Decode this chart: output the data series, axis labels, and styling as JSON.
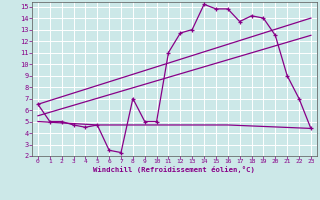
{
  "xlabel": "Windchill (Refroidissement éolien,°C)",
  "bg_color": "#cce8e8",
  "grid_color": "#ffffff",
  "line_color": "#880088",
  "xlim": [
    -0.5,
    23.5
  ],
  "ylim": [
    2,
    15.4
  ],
  "xticks": [
    0,
    1,
    2,
    3,
    4,
    5,
    6,
    7,
    8,
    9,
    10,
    11,
    12,
    13,
    14,
    15,
    16,
    17,
    18,
    19,
    20,
    21,
    22,
    23
  ],
  "yticks": [
    2,
    3,
    4,
    5,
    6,
    7,
    8,
    9,
    10,
    11,
    12,
    13,
    14,
    15
  ],
  "line1_x": [
    0,
    1,
    2,
    3,
    4,
    5,
    6,
    7,
    8,
    9,
    10,
    11,
    12,
    13,
    14,
    15,
    16,
    17,
    18,
    19,
    20,
    21,
    22,
    23
  ],
  "line1_y": [
    6.5,
    5.0,
    5.0,
    4.7,
    4.5,
    4.7,
    2.5,
    2.3,
    7.0,
    5.0,
    5.0,
    11.0,
    12.7,
    13.0,
    15.2,
    14.8,
    14.8,
    13.7,
    14.2,
    14.0,
    12.5,
    9.0,
    7.0,
    4.4
  ],
  "line2_x": [
    0,
    23
  ],
  "line2_y": [
    6.5,
    14.0
  ],
  "line3_x": [
    0,
    23
  ],
  "line3_y": [
    5.5,
    12.5
  ],
  "line4_x": [
    0,
    5,
    16,
    23
  ],
  "line4_y": [
    5.0,
    4.7,
    4.7,
    4.4
  ]
}
